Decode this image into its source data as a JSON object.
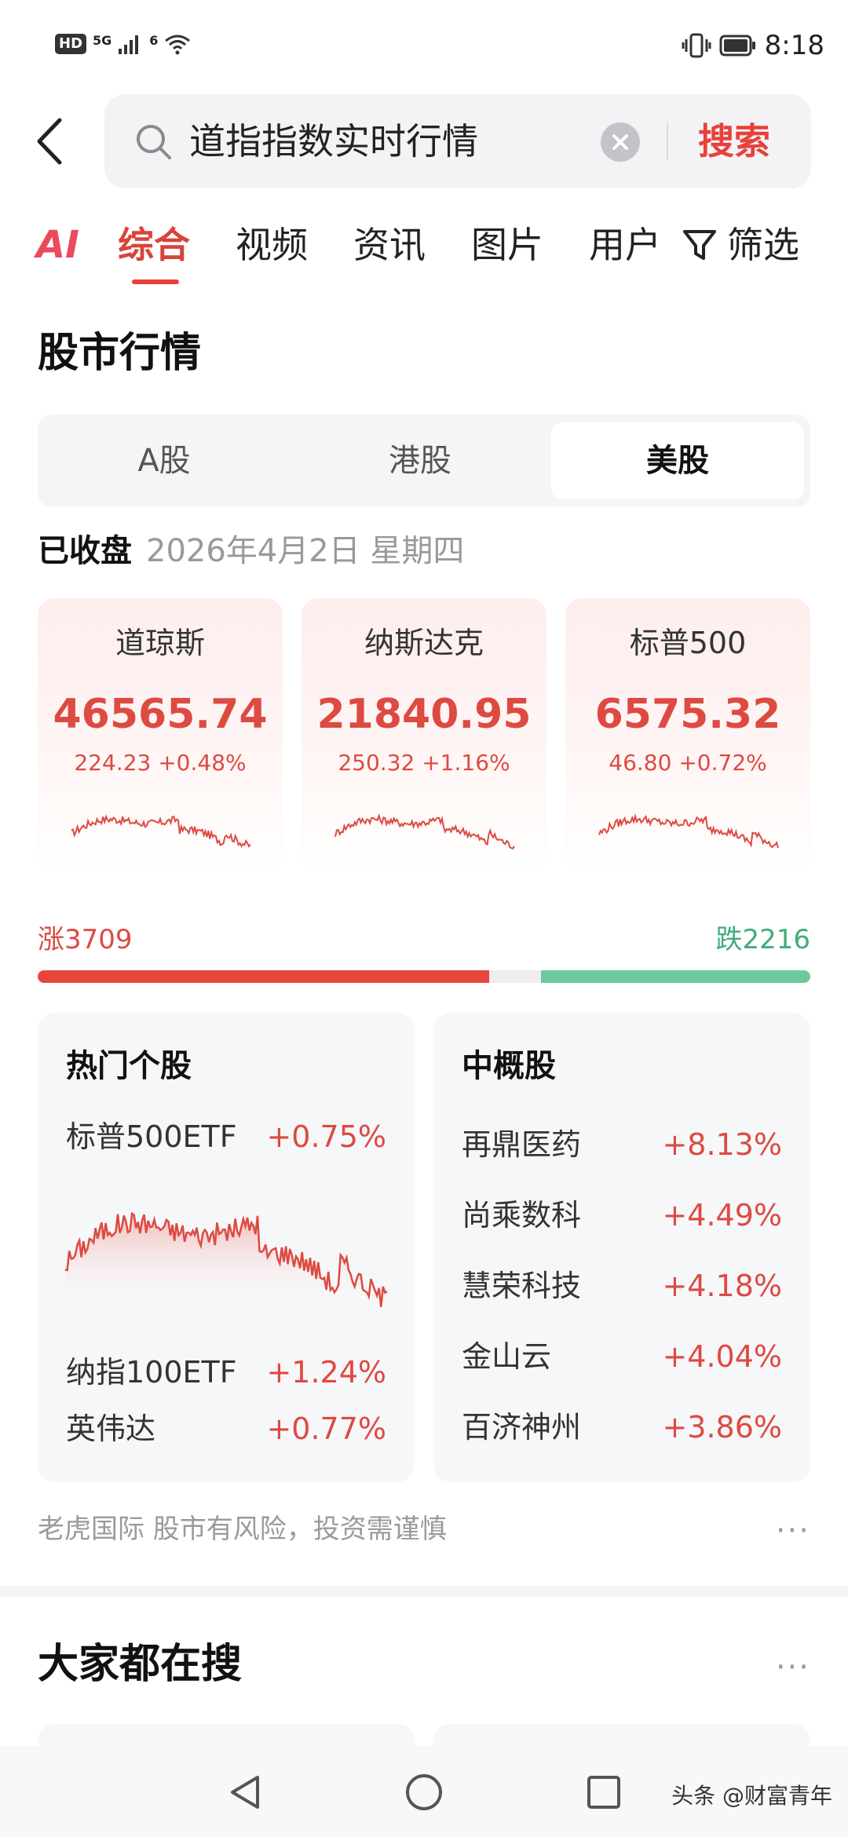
{
  "status_bar": {
    "hd": "HD",
    "network": "5G",
    "wifi_tag": "6",
    "time": "8:18",
    "icons": [
      "hd-icon",
      "signal-icon",
      "wifi-icon",
      "vibrate-icon",
      "battery-icon"
    ]
  },
  "search": {
    "query": "道指指数实时行情",
    "button": "搜索"
  },
  "tabs": {
    "ai": "AI",
    "items": [
      "综合",
      "视频",
      "资讯",
      "图片",
      "用户"
    ],
    "active": "综合",
    "filter": "筛选"
  },
  "market": {
    "title": "股市行情",
    "segments": [
      "A股",
      "港股",
      "美股"
    ],
    "active_segment": "美股",
    "status": "已收盘",
    "date": "2026年4月2日 星期四",
    "indices": [
      {
        "name": "道琼斯",
        "value": "46565.74",
        "change": "224.23 +0.48%"
      },
      {
        "name": "纳斯达克",
        "value": "21840.95",
        "change": "250.32 +1.16%"
      },
      {
        "name": "标普500",
        "value": "6575.32",
        "change": "46.80 +0.72%"
      }
    ],
    "breadth": {
      "up_label": "涨3709",
      "down_label": "跌2216",
      "up": 3709,
      "down": 2216
    }
  },
  "hot_stocks": {
    "title": "热门个股",
    "featured": {
      "name": "标普500ETF",
      "change": "+0.75%"
    },
    "others": [
      {
        "name": "纳指100ETF",
        "change": "+1.24%"
      },
      {
        "name": "英伟达",
        "change": "+0.77%"
      }
    ]
  },
  "china_concepts": {
    "title": "中概股",
    "items": [
      {
        "name": "再鼎医药",
        "change": "+8.13%"
      },
      {
        "name": "尚乘数科",
        "change": "+4.49%"
      },
      {
        "name": "慧荣科技",
        "change": "+4.18%"
      },
      {
        "name": "金山云",
        "change": "+4.04%"
      },
      {
        "name": "百济神州",
        "change": "+3.86%"
      }
    ]
  },
  "disclaimer": "老虎国际 股市有风险，投资需谨慎",
  "more": "···",
  "trending": {
    "title": "大家都在搜",
    "more": "···"
  },
  "watermark": "头条 @财富青年",
  "colors": {
    "up": "#dd4a42",
    "down": "#3fad7a",
    "accent": "#e8413b"
  }
}
